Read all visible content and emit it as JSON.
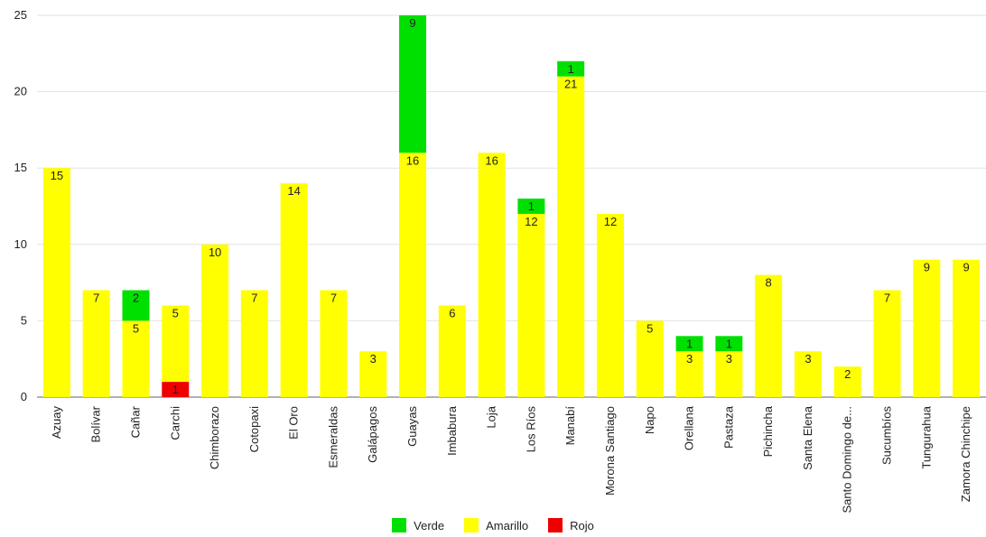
{
  "chart_data": {
    "type": "bar",
    "stacked": true,
    "categories": [
      "Azuay",
      "Bolívar",
      "Cañar",
      "Carchi",
      "Chimborazo",
      "Cotopaxi",
      "El Oro",
      "Esmeraldas",
      "Galápagos",
      "Guayas",
      "Imbabura",
      "Loja",
      "Los Ríos",
      "Manabí",
      "Morona Santiago",
      "Napo",
      "Orellana",
      "Pastaza",
      "Pichincha",
      "Santa Elena",
      "Santo Domingo de...",
      "Sucumbíos",
      "Tungurahua",
      "Zamora Chinchipe"
    ],
    "series": [
      {
        "name": "Verde",
        "color": "#00e000",
        "values": [
          0,
          0,
          2,
          0,
          0,
          0,
          0,
          0,
          0,
          9,
          0,
          0,
          1,
          1,
          0,
          0,
          1,
          1,
          0,
          0,
          0,
          0,
          0,
          0
        ]
      },
      {
        "name": "Amarillo",
        "color": "#ffff00",
        "values": [
          15,
          7,
          5,
          5,
          10,
          7,
          14,
          7,
          3,
          16,
          6,
          16,
          12,
          21,
          12,
          5,
          3,
          3,
          8,
          3,
          2,
          7,
          9,
          9
        ]
      },
      {
        "name": "Rojo",
        "color": "#ee0000",
        "values": [
          0,
          0,
          0,
          1,
          0,
          0,
          0,
          0,
          0,
          0,
          0,
          0,
          0,
          0,
          0,
          0,
          0,
          0,
          0,
          0,
          0,
          0,
          0,
          0
        ]
      }
    ],
    "stack_order_bottom_to_top": [
      "Rojo",
      "Amarillo",
      "Verde"
    ],
    "yticks": [
      0,
      5,
      10,
      15,
      20,
      25
    ],
    "ylim": [
      0,
      25
    ],
    "grid": true,
    "legend_position": "bottom",
    "outside_label_color": "#22bb22"
  }
}
